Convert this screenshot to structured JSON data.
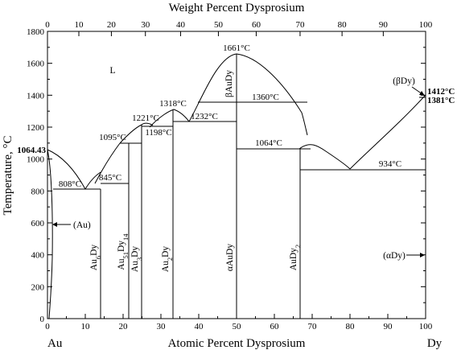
{
  "top_axis": {
    "title": "Weight Percent Dysprosium",
    "ticks": [
      {
        "label": "0",
        "at_at_pct": 0
      },
      {
        "label": "10",
        "at_at_pct": 8.3
      },
      {
        "label": "20",
        "at_at_pct": 16.9
      },
      {
        "label": "30",
        "at_at_pct": 25.9
      },
      {
        "label": "40",
        "at_at_pct": 35.2
      },
      {
        "label": "50",
        "at_at_pct": 45.2
      },
      {
        "label": "60",
        "at_at_pct": 55.2
      },
      {
        "label": "70",
        "at_at_pct": 66.8
      },
      {
        "label": "80",
        "at_at_pct": 77.9
      },
      {
        "label": "90",
        "at_at_pct": 88.8
      },
      {
        "label": "100",
        "at_at_pct": 100
      }
    ]
  },
  "bottom_axis": {
    "title": "Atomic Percent Dysprosium",
    "left_element": "Au",
    "right_element": "Dy",
    "min": 0,
    "max": 100,
    "ticks": [
      "0",
      "10",
      "20",
      "30",
      "40",
      "50",
      "60",
      "70",
      "80",
      "90",
      "100"
    ]
  },
  "y_axis": {
    "title": "Temperature, °C",
    "min": 0,
    "max": 1800,
    "ticks": [
      "0",
      "200",
      "400",
      "600",
      "800",
      "1000",
      "1200",
      "1400",
      "1600",
      "1800"
    ]
  },
  "annotations": {
    "au_melting": "1064.43",
    "dy_high": "1412°C",
    "dy_low": "1381°C",
    "t1661": "1661°C",
    "t1360": "1360°C",
    "t1318": "1318°C",
    "t1232": "1232°C",
    "t1221": "1221°C",
    "t1198": "1198°C",
    "t1095": "1095°C",
    "t1064": "1064°C",
    "t934": "934°C",
    "t845": "845°C",
    "t808": "808°C"
  },
  "phases": {
    "liquid": "L",
    "au_solid": "(Au)",
    "beta_dy": "(βDy)",
    "alpha_dy": "(αDy)",
    "au6dy": [
      "Au",
      "6",
      "Dy"
    ],
    "au51dy14": [
      "Au",
      "51",
      "Dy",
      "14"
    ],
    "au3dy": [
      "Au",
      "3",
      "Dy"
    ],
    "au2dy": [
      "Au",
      "2",
      "Dy"
    ],
    "alpha_audy": "αAuDy",
    "beta_audy": "βAuDy",
    "audy2": [
      "AuDy",
      "2"
    ]
  }
}
